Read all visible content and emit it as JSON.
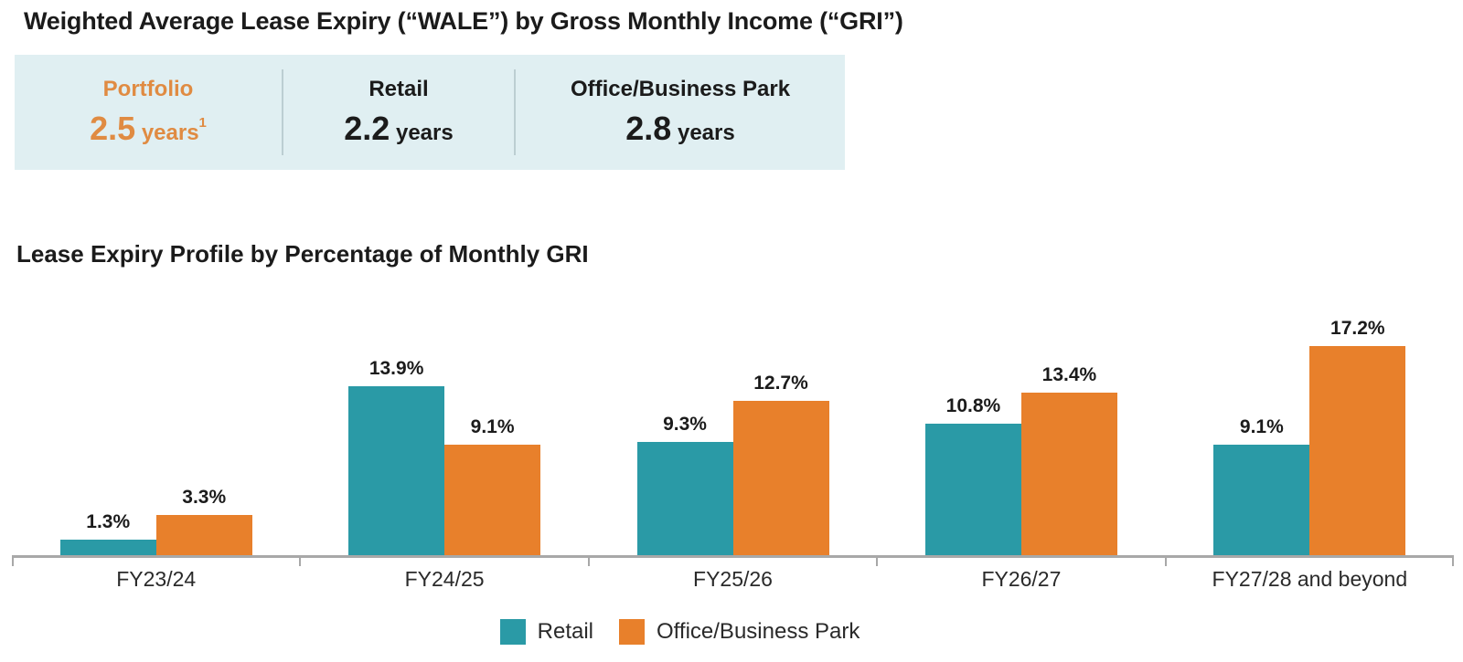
{
  "page_title": "Weighted Average Lease Expiry (“WALE”) by Gross Monthly Income (“GRI”)",
  "summary": {
    "items": [
      {
        "label": "Portfolio",
        "value": "2.5",
        "unit": "years",
        "footnote": "1",
        "highlight": true
      },
      {
        "label": "Retail",
        "value": "2.2",
        "unit": "years"
      },
      {
        "label": "Office/Business Park",
        "value": "2.8",
        "unit": "years"
      }
    ]
  },
  "chart_data": {
    "type": "bar",
    "title": "Lease Expiry Profile by Percentage of Monthly GRI",
    "categories": [
      "FY23/24",
      "FY24/25",
      "FY25/26",
      "FY26/27",
      "FY27/28 and beyond"
    ],
    "series": [
      {
        "name": "Retail",
        "color": "#2a9aa6",
        "values": [
          1.3,
          13.9,
          9.3,
          10.8,
          9.1
        ]
      },
      {
        "name": "Office/Business Park",
        "color": "#e8802b",
        "values": [
          3.3,
          9.1,
          12.7,
          13.4,
          17.2
        ]
      }
    ],
    "value_suffix": "%",
    "ylim": [
      0,
      21
    ],
    "grid": false,
    "legend_position": "bottom",
    "xlabel": "",
    "ylabel": ""
  },
  "colors": {
    "retail": "#2a9aa6",
    "office": "#e8802b",
    "summary_bg": "#e0eff2",
    "accent_text": "#e08b42",
    "axis": "#a8a8a8",
    "text": "#1b1b1b"
  }
}
